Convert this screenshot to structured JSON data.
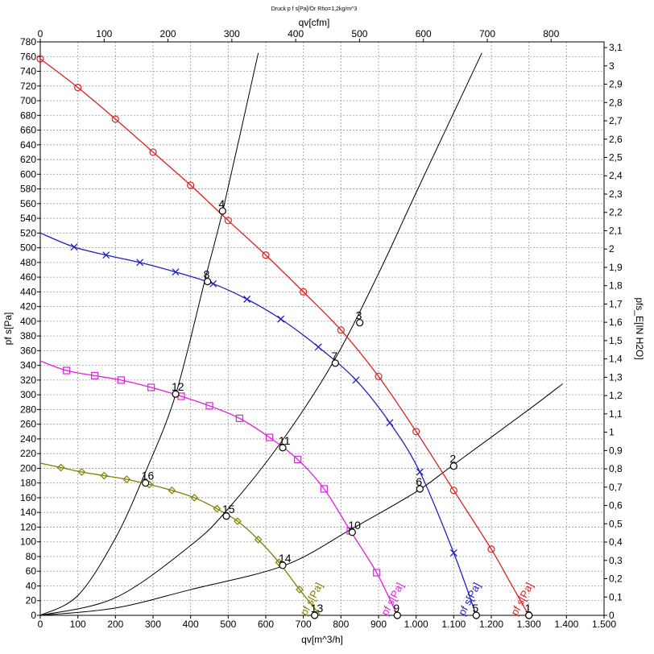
{
  "chart_data": {
    "type": "line",
    "title": "Druck p f s[Pa]/Ör Rho=1,2kg/m^3",
    "xlabel": "qv[m^3/h]",
    "x2label": "qv[cfm]",
    "ylabel": "pf s[Pa]",
    "y2label": "pfs_E[IN H2O]",
    "xlim": [
      0,
      1500
    ],
    "ylim": [
      0,
      780
    ],
    "x2lim": [
      0,
      882.9
    ],
    "y2lim": [
      0,
      3.131
    ],
    "x_ticks": [
      0,
      100,
      200,
      300,
      400,
      500,
      600,
      700,
      800,
      900,
      1000,
      1100,
      1200,
      1300,
      1400,
      1500
    ],
    "x_tick_labels": [
      "0",
      "100",
      "200",
      "300",
      "400",
      "500",
      "600",
      "700",
      "800",
      "900",
      "1.000",
      "1.100",
      "1.200",
      "1.300",
      "1.400",
      "1.500"
    ],
    "y_ticks": [
      0,
      20,
      40,
      60,
      80,
      100,
      120,
      140,
      160,
      180,
      200,
      220,
      240,
      260,
      280,
      300,
      320,
      340,
      360,
      380,
      400,
      420,
      440,
      460,
      480,
      500,
      520,
      540,
      560,
      580,
      600,
      620,
      640,
      660,
      680,
      700,
      720,
      740,
      760,
      780
    ],
    "x2_ticks": [
      0,
      100,
      200,
      300,
      400,
      500,
      600,
      700,
      800
    ],
    "y2_ticks": [
      "0",
      "0,1",
      "0,2",
      "0,3",
      "0,4",
      "0,5",
      "0,6",
      "0,7",
      "0,8",
      "0,9",
      "1",
      "1,1",
      "1,2",
      "1,3",
      "1,4",
      "1,5",
      "1,6",
      "1,7",
      "1,8",
      "1,9",
      "2",
      "2,1",
      "2,2",
      "2,3",
      "2,4",
      "2,5",
      "2,6",
      "2,7",
      "2,8",
      "2,9",
      "3",
      "3,1"
    ],
    "grid": true,
    "series": [
      {
        "name": "pf s[Pa]",
        "color": "#e02020",
        "marker": "circle",
        "x": [
          0,
          100,
          200,
          300,
          400,
          500,
          600,
          700,
          800,
          900,
          1000,
          1100,
          1200,
          1250,
          1300
        ],
        "y": [
          757,
          718,
          675,
          630,
          585,
          537,
          490,
          440,
          388,
          325,
          250,
          170,
          90,
          45,
          0
        ],
        "marker_x": [
          0,
          100,
          200,
          300,
          400,
          500,
          600,
          700,
          800,
          900,
          1000,
          1100,
          1200,
          1300
        ],
        "marker_y": [
          757,
          718,
          675,
          630,
          585,
          537,
          490,
          440,
          388,
          325,
          250,
          170,
          90,
          0
        ]
      },
      {
        "name": "pf s[Pa]",
        "color": "#2020c0",
        "marker": "x",
        "x": [
          0,
          90,
          175,
          265,
          360,
          460,
          550,
          640,
          740,
          840,
          930,
          1010,
          1100,
          1160
        ],
        "y": [
          520,
          501,
          490,
          480,
          467,
          451,
          430,
          403,
          365,
          320,
          262,
          195,
          85,
          0
        ],
        "marker_x": [
          90,
          175,
          265,
          360,
          460,
          550,
          640,
          740,
          840,
          930,
          1010,
          1100
        ],
        "marker_y": [
          501,
          490,
          480,
          467,
          451,
          430,
          403,
          365,
          320,
          262,
          195,
          85
        ]
      },
      {
        "name": "pf s[Pa]",
        "color": "#e020e0",
        "marker": "square",
        "x": [
          0,
          70,
          145,
          215,
          295,
          375,
          450,
          530,
          610,
          685,
          755,
          825,
          895,
          950
        ],
        "y": [
          346,
          333,
          326,
          320,
          310,
          298,
          285,
          268,
          242,
          212,
          172,
          115,
          58,
          0
        ],
        "marker_x": [
          70,
          145,
          215,
          295,
          375,
          450,
          530,
          610,
          685,
          755,
          825,
          895
        ],
        "marker_y": [
          333,
          326,
          320,
          310,
          298,
          285,
          268,
          242,
          212,
          172,
          115,
          58
        ]
      },
      {
        "name": "pf s[Pa]",
        "color": "#808000",
        "marker": "diamond",
        "x": [
          0,
          55,
          110,
          170,
          230,
          290,
          350,
          410,
          470,
          525,
          580,
          635,
          690,
          745
        ],
        "y": [
          207,
          201,
          195,
          190,
          185,
          178,
          170,
          160,
          145,
          128,
          103,
          72,
          35,
          0
        ],
        "marker_x": [
          55,
          110,
          170,
          230,
          290,
          350,
          410,
          470,
          525,
          580,
          635,
          690
        ],
        "marker_y": [
          201,
          195,
          190,
          185,
          178,
          170,
          160,
          145,
          128,
          103,
          72,
          35
        ]
      }
    ],
    "system_curves": [
      {
        "x": [
          0,
          100,
          200,
          280,
          360,
          440,
          490,
          580
        ],
        "y": [
          0,
          27,
          105,
          195,
          300,
          460,
          560,
          765
        ]
      },
      {
        "x": [
          0,
          200,
          400,
          500,
          640,
          780,
          900,
          1000,
          1175
        ],
        "y": [
          0,
          24,
          95,
          145,
          235,
          345,
          465,
          575,
          765
        ]
      },
      {
        "x": [
          0,
          200,
          400,
          650,
          830,
          1000,
          1100,
          1300,
          1390
        ],
        "y": [
          0,
          10,
          35,
          68,
          118,
          168,
          205,
          280,
          315
        ]
      }
    ],
    "operating_points": [
      {
        "label": "1",
        "x": 1300,
        "y": 0
      },
      {
        "label": "2",
        "x": 1100,
        "y": 203
      },
      {
        "label": "3",
        "x": 850,
        "y": 398
      },
      {
        "label": "4",
        "x": 485,
        "y": 550
      },
      {
        "label": "5",
        "x": 1160,
        "y": 0
      },
      {
        "label": "6",
        "x": 1010,
        "y": 172
      },
      {
        "label": "7",
        "x": 785,
        "y": 343
      },
      {
        "label": "8",
        "x": 445,
        "y": 454
      },
      {
        "label": "9",
        "x": 950,
        "y": 0
      },
      {
        "label": "10",
        "x": 830,
        "y": 113
      },
      {
        "label": "11",
        "x": 645,
        "y": 228
      },
      {
        "label": "12",
        "x": 360,
        "y": 301
      },
      {
        "label": "13",
        "x": 730,
        "y": 0
      },
      {
        "label": "14",
        "x": 645,
        "y": 68
      },
      {
        "label": "15",
        "x": 495,
        "y": 135
      },
      {
        "label": "16",
        "x": 280,
        "y": 180
      }
    ],
    "series_labels": [
      {
        "text": "pf s[Pa]",
        "color": "#e02020",
        "x": 1290,
        "y": 20
      },
      {
        "text": "pf s[Pa]",
        "color": "#2020c0",
        "x": 1150,
        "y": 20
      },
      {
        "text": "pf s[Pa]",
        "color": "#e020e0",
        "x": 945,
        "y": 20
      },
      {
        "text": "pf s[Pa]",
        "color": "#808000",
        "x": 730,
        "y": 20
      }
    ]
  }
}
